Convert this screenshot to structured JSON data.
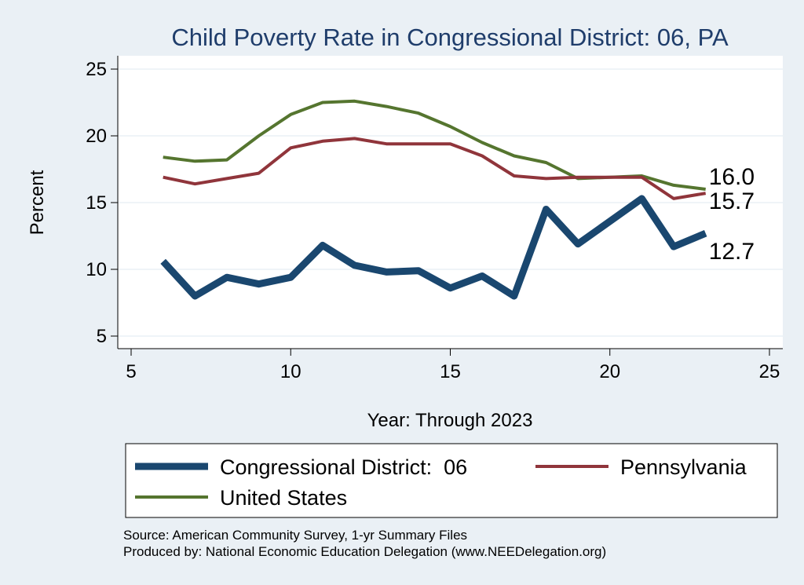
{
  "chart_data": {
    "type": "line",
    "title": "Child Poverty Rate in Congressional District:  06, PA",
    "xlabel": "Year: Through 2023",
    "ylabel": "Percent",
    "xlim": [
      5,
      25
    ],
    "ylim": [
      5,
      25
    ],
    "xticks": [
      5,
      10,
      15,
      20,
      25
    ],
    "yticks": [
      5,
      10,
      15,
      20,
      25
    ],
    "grid": "horizontal",
    "legend_position": "bottom",
    "x": [
      6,
      7,
      8,
      9,
      10,
      11,
      12,
      13,
      14,
      15,
      16,
      17,
      18,
      19,
      20,
      21,
      22,
      23
    ],
    "series": [
      {
        "name": "Congressional District:  06",
        "color": "#1a476f",
        "values": [
          10.6,
          8.0,
          9.4,
          8.9,
          9.4,
          11.8,
          10.3,
          9.8,
          9.9,
          8.6,
          9.5,
          8.0,
          14.5,
          11.9,
          13.6,
          15.3,
          11.7,
          12.7
        ],
        "end_label": "12.7"
      },
      {
        "name": "Pennsylvania",
        "color": "#90353b",
        "values": [
          16.9,
          16.4,
          16.8,
          17.2,
          19.1,
          19.6,
          19.8,
          19.4,
          19.4,
          19.4,
          18.5,
          17.0,
          16.8,
          16.9,
          16.9,
          16.9,
          15.3,
          15.7
        ],
        "end_label": "15.7"
      },
      {
        "name": "United States",
        "color": "#55752f",
        "values": [
          18.4,
          18.1,
          18.2,
          20.0,
          21.6,
          22.5,
          22.6,
          22.2,
          21.7,
          20.7,
          19.5,
          18.5,
          18.0,
          16.8,
          16.9,
          17.0,
          16.3,
          16.0
        ],
        "end_label": "16.0"
      }
    ],
    "notes": [
      "Source: American Community Survey, 1-yr Summary Files",
      "Produced by: National Economic Education Delegation (www.NEEDelegation.org)"
    ]
  }
}
